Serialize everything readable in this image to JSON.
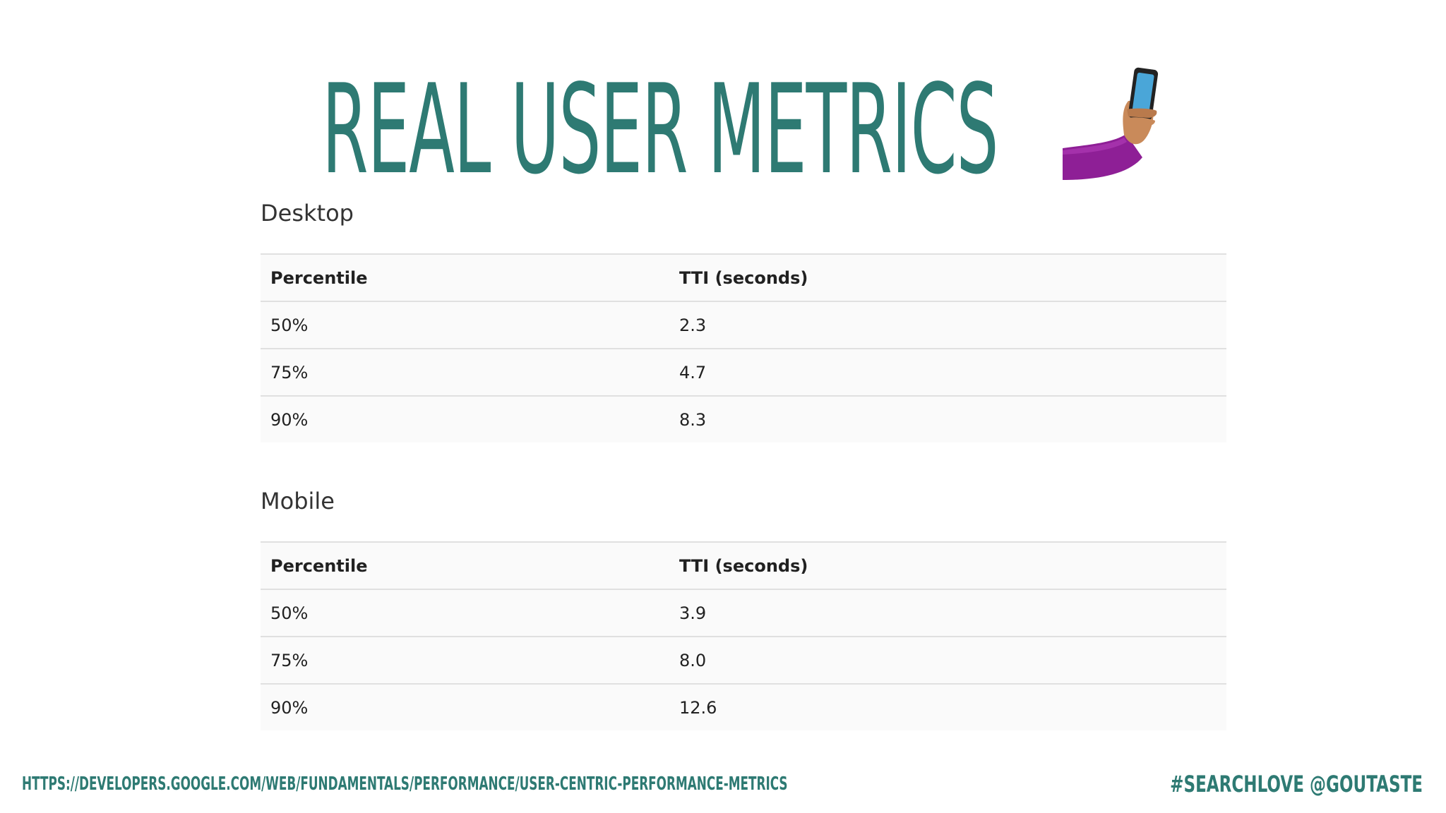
{
  "slide": {
    "title": "Real user metrics",
    "icon": "selfie-emoji",
    "footer_url": "https://developers.google.com/web/fundamentals/performance/user-centric-performance-metrics",
    "footer_handle": "#SEARCHLOVE @GOUTASTE",
    "accent_color": "#2e7a73"
  },
  "desktop": {
    "label": "Desktop",
    "headers": [
      "Percentile",
      "TTI (seconds)"
    ],
    "rows": [
      [
        "50%",
        "2.3"
      ],
      [
        "75%",
        "4.7"
      ],
      [
        "90%",
        "8.3"
      ]
    ]
  },
  "mobile": {
    "label": "Mobile",
    "headers": [
      "Percentile",
      "TTI (seconds)"
    ],
    "rows": [
      [
        "50%",
        "3.9"
      ],
      [
        "75%",
        "8.0"
      ],
      [
        "90%",
        "12.6"
      ]
    ]
  }
}
